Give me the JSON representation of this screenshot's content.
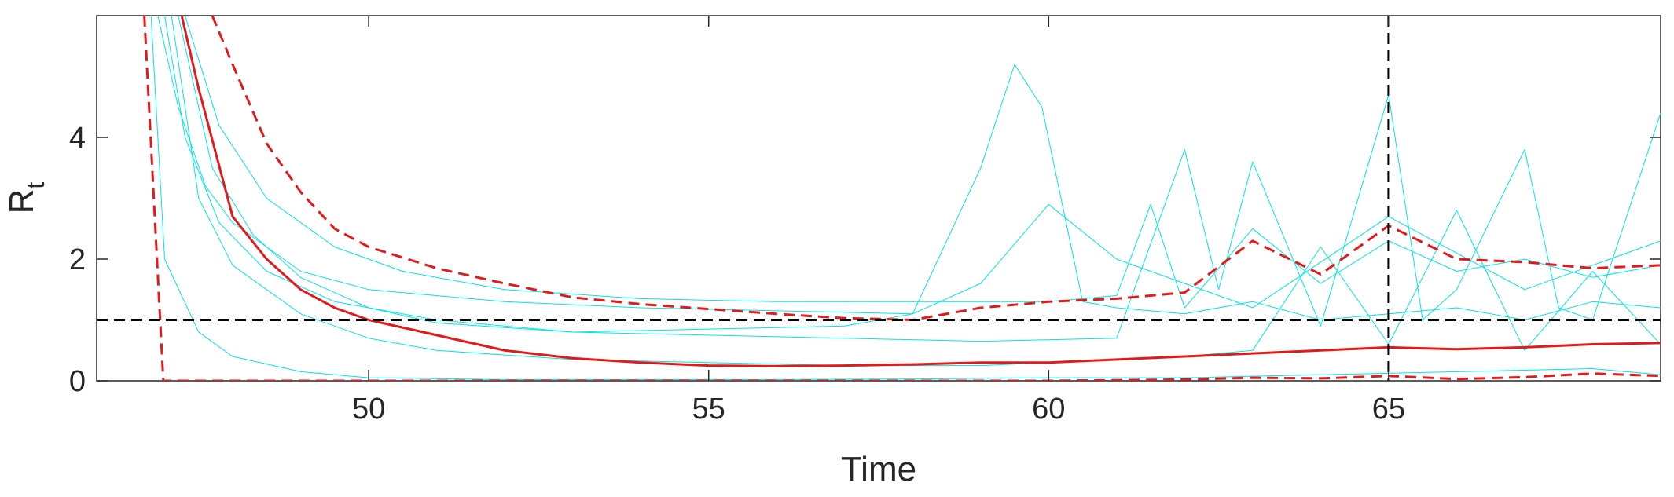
{
  "chart_data": {
    "type": "line",
    "xlabel": "Time",
    "ylabel": "R",
    "ylabel_subscript": "t",
    "xlim": [
      46,
      69
    ],
    "ylim": [
      0,
      6
    ],
    "xticks": [
      50,
      55,
      60,
      65
    ],
    "yticks": [
      0,
      2,
      4
    ],
    "hlines": [
      {
        "value": 1,
        "color": "#000000"
      }
    ],
    "vlines": [
      {
        "value": 65,
        "color": "#000000"
      }
    ],
    "series": [
      {
        "color": "#00e5e5",
        "dash": false,
        "width": 1,
        "x": [
          46.9,
          47.2,
          47.6,
          48,
          49,
          50,
          52,
          54,
          56,
          58,
          59,
          59.5,
          59.9,
          60.5,
          61,
          62,
          63,
          64,
          65,
          66,
          67,
          68,
          69
        ],
        "values": [
          6,
          4.5,
          3.2,
          2.6,
          1.8,
          1.5,
          1.3,
          1.2,
          1.15,
          1.1,
          3.5,
          5.2,
          4.5,
          1.3,
          1.2,
          1.1,
          1.3,
          1.0,
          1.1,
          1.2,
          1.0,
          1.3,
          1.2
        ]
      },
      {
        "color": "#00e5e5",
        "dash": false,
        "width": 1,
        "x": [
          47,
          47.3,
          47.8,
          48.5,
          49.5,
          51,
          53,
          55,
          57,
          59,
          61,
          62,
          62.5,
          63,
          64,
          65,
          65.5,
          66,
          67,
          67.5,
          68,
          69
        ],
        "values": [
          6,
          4.0,
          2.6,
          1.8,
          1.3,
          1.0,
          0.8,
          0.75,
          0.7,
          0.65,
          0.7,
          3.8,
          1.5,
          3.6,
          0.9,
          4.7,
          1.0,
          1.5,
          3.8,
          1.2,
          1.0,
          4.4
        ]
      },
      {
        "color": "#00e5e5",
        "dash": false,
        "width": 1,
        "x": [
          47.1,
          47.5,
          48,
          49,
          50,
          51,
          53,
          55,
          57,
          59,
          60,
          61,
          62,
          63,
          64,
          65,
          66,
          67,
          68,
          69
        ],
        "values": [
          6,
          3.0,
          1.9,
          1.1,
          0.7,
          0.5,
          0.35,
          0.3,
          0.25,
          0.25,
          0.3,
          0.35,
          0.4,
          0.5,
          2.2,
          0.6,
          2.8,
          0.5,
          1.8,
          0.6
        ]
      },
      {
        "color": "#00e5e5",
        "dash": false,
        "width": 1,
        "x": [
          47.3,
          47.8,
          48.5,
          49.5,
          50.5,
          52,
          54,
          56,
          58,
          60,
          61,
          61.5,
          62,
          63,
          64,
          65,
          66,
          67,
          68,
          69
        ],
        "values": [
          6,
          4.2,
          3.0,
          2.2,
          1.8,
          1.5,
          1.35,
          1.3,
          1.3,
          1.3,
          1.4,
          2.9,
          1.2,
          2.5,
          1.6,
          2.3,
          1.8,
          2.0,
          1.7,
          1.9
        ]
      },
      {
        "color": "#00e5e5",
        "dash": false,
        "width": 1,
        "x": [
          46.8,
          47,
          47.5,
          48,
          49,
          50,
          52,
          54,
          56,
          58,
          60,
          62,
          64,
          66,
          68,
          69
        ],
        "values": [
          6,
          2.0,
          0.8,
          0.4,
          0.15,
          0.05,
          0.02,
          0.02,
          0.02,
          0.03,
          0.05,
          0.05,
          0.1,
          0.15,
          0.2,
          0.1
        ]
      },
      {
        "color": "#00e5e5",
        "dash": false,
        "width": 1,
        "x": [
          47.2,
          47.7,
          48.3,
          49,
          50,
          51,
          53,
          55,
          57,
          58,
          59,
          60,
          61,
          63,
          65,
          67,
          69
        ],
        "values": [
          6,
          3.5,
          2.4,
          1.7,
          1.2,
          0.95,
          0.8,
          0.85,
          0.9,
          1.1,
          1.6,
          2.9,
          2.0,
          1.2,
          2.7,
          1.5,
          2.3
        ]
      },
      {
        "color": "#e31a1c",
        "dash": true,
        "width": 3,
        "x": [
          47.7,
          48,
          48.5,
          49,
          49.5,
          50,
          51,
          52,
          53,
          54,
          55,
          56,
          57,
          58,
          59,
          60,
          61,
          62,
          63,
          64,
          65,
          66,
          67,
          68,
          69
        ],
        "values": [
          6,
          5.2,
          3.9,
          3.1,
          2.5,
          2.2,
          1.85,
          1.6,
          1.37,
          1.26,
          1.18,
          1.1,
          1.03,
          1.0,
          1.2,
          1.3,
          1.35,
          1.45,
          2.3,
          1.75,
          2.55,
          2.0,
          1.95,
          1.85,
          1.9
        ]
      },
      {
        "color": "#e31a1c",
        "dash": false,
        "width": 3,
        "x": [
          47.25,
          47.5,
          48,
          48.5,
          49,
          49.5,
          50,
          51,
          52,
          53,
          54,
          55,
          56,
          57,
          58,
          59,
          60,
          61,
          62,
          63,
          64,
          65,
          66,
          67,
          68,
          69
        ],
        "values": [
          6,
          4.8,
          2.7,
          2.0,
          1.5,
          1.2,
          1.0,
          0.75,
          0.5,
          0.37,
          0.3,
          0.25,
          0.24,
          0.25,
          0.27,
          0.3,
          0.3,
          0.35,
          0.4,
          0.45,
          0.5,
          0.55,
          0.52,
          0.55,
          0.6,
          0.62
        ]
      },
      {
        "color": "#e31a1c",
        "dash": true,
        "width": 3,
        "x": [
          46.7,
          46.98,
          50,
          55,
          60,
          62,
          63,
          64,
          65,
          66,
          67,
          68,
          69
        ],
        "values": [
          6,
          0,
          0,
          0,
          0,
          0.02,
          0.05,
          0.04,
          0.08,
          0.03,
          0.06,
          0.12,
          0.08
        ]
      }
    ]
  }
}
